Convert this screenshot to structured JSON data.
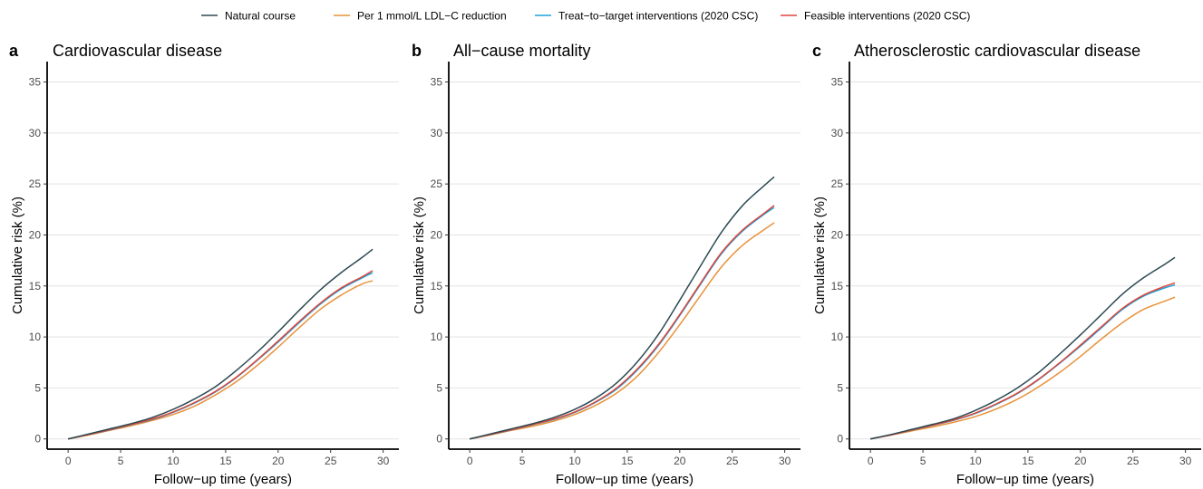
{
  "legend": [
    {
      "label": "Natural course",
      "color": "#2c4a52"
    },
    {
      "label": "Per 1 mmol/L LDL−C reduction",
      "color": "#e8923a"
    },
    {
      "label": "Treat−to−target interventions (2020 CSC)",
      "color": "#1aa3d9"
    },
    {
      "label": "Feasible interventions (2020 CSC)",
      "color": "#e0453a"
    }
  ],
  "chart_data": [
    {
      "type": "line",
      "letter": "a",
      "title": "Cardiovascular disease",
      "xlabel": "Follow−up time (years)",
      "ylabel": "Cumulative risk (%)",
      "xlim": [
        -2,
        31.5
      ],
      "ylim": [
        -1,
        37
      ],
      "xticks": [
        0,
        5,
        10,
        15,
        20,
        25,
        30
      ],
      "yticks": [
        0,
        5,
        10,
        15,
        20,
        25,
        30,
        35
      ],
      "grid": "horizontal",
      "x": [
        0,
        2,
        4,
        6,
        8,
        10,
        12,
        14,
        16,
        18,
        20,
        22,
        24,
        26,
        28,
        29
      ],
      "series": [
        {
          "name": "Natural course",
          "values": [
            0,
            0.5,
            1.0,
            1.5,
            2.1,
            2.9,
            3.9,
            5.1,
            6.7,
            8.5,
            10.5,
            12.6,
            14.6,
            16.3,
            17.8,
            18.6
          ]
        },
        {
          "name": "Per 1 mmol/L LDL−C reduction",
          "values": [
            0,
            0.4,
            0.85,
            1.3,
            1.8,
            2.4,
            3.2,
            4.3,
            5.6,
            7.2,
            9.0,
            10.9,
            12.7,
            14.1,
            15.2,
            15.5
          ]
        },
        {
          "name": "Treat−to−target interventions (2020 CSC)",
          "values": [
            0,
            0.45,
            0.9,
            1.4,
            1.9,
            2.6,
            3.5,
            4.6,
            6.0,
            7.7,
            9.5,
            11.4,
            13.2,
            14.7,
            15.8,
            16.3
          ]
        },
        {
          "name": "Feasible interventions (2020 CSC)",
          "values": [
            0,
            0.45,
            0.92,
            1.42,
            1.95,
            2.65,
            3.55,
            4.65,
            6.05,
            7.75,
            9.6,
            11.5,
            13.3,
            14.8,
            15.9,
            16.5
          ]
        }
      ]
    },
    {
      "type": "line",
      "letter": "b",
      "title": "All−cause mortality",
      "xlabel": "Follow−up time (years)",
      "ylabel": "Cumulative risk (%)",
      "xlim": [
        -2,
        31.5
      ],
      "ylim": [
        -1,
        37
      ],
      "xticks": [
        0,
        5,
        10,
        15,
        20,
        25,
        30
      ],
      "yticks": [
        0,
        5,
        10,
        15,
        20,
        25,
        30,
        35
      ],
      "grid": "horizontal",
      "x": [
        0,
        2,
        4,
        6,
        8,
        10,
        12,
        14,
        16,
        18,
        20,
        22,
        24,
        26,
        28,
        29
      ],
      "series": [
        {
          "name": "Natural course",
          "values": [
            0,
            0.5,
            1.0,
            1.5,
            2.1,
            2.9,
            4.0,
            5.5,
            7.6,
            10.3,
            13.6,
            17.0,
            20.3,
            22.9,
            24.8,
            25.7
          ]
        },
        {
          "name": "Per 1 mmol/L LDL−C reduction",
          "values": [
            0,
            0.4,
            0.85,
            1.25,
            1.75,
            2.4,
            3.3,
            4.5,
            6.2,
            8.5,
            11.2,
            14.1,
            16.9,
            19.0,
            20.5,
            21.2
          ]
        },
        {
          "name": "Treat−to−target interventions (2020 CSC)",
          "values": [
            0,
            0.45,
            0.9,
            1.4,
            1.9,
            2.6,
            3.6,
            4.9,
            6.8,
            9.2,
            12.1,
            15.2,
            18.2,
            20.4,
            22.0,
            22.7
          ]
        },
        {
          "name": "Feasible interventions (2020 CSC)",
          "values": [
            0,
            0.45,
            0.92,
            1.42,
            1.95,
            2.65,
            3.65,
            5.0,
            6.9,
            9.3,
            12.2,
            15.3,
            18.3,
            20.5,
            22.1,
            22.9
          ]
        }
      ]
    },
    {
      "type": "line",
      "letter": "c",
      "title": "Atherosclerostic cardiovascular disease",
      "xlabel": "Follow−up time (years)",
      "ylabel": "Cumulative risk (%)",
      "xlim": [
        -2,
        31.5
      ],
      "ylim": [
        -1,
        37
      ],
      "xticks": [
        0,
        5,
        10,
        15,
        20,
        25,
        30
      ],
      "yticks": [
        0,
        5,
        10,
        15,
        20,
        25,
        30,
        35
      ],
      "grid": "horizontal",
      "x": [
        0,
        2,
        4,
        6,
        8,
        10,
        12,
        14,
        16,
        18,
        20,
        22,
        24,
        26,
        28,
        29
      ],
      "series": [
        {
          "name": "Natural course",
          "values": [
            0,
            0.45,
            0.95,
            1.45,
            2.0,
            2.8,
            3.8,
            5.0,
            6.5,
            8.3,
            10.2,
            12.2,
            14.2,
            15.8,
            17.1,
            17.8
          ]
        },
        {
          "name": "Per 1 mmol/L LDL−C reduction",
          "values": [
            0,
            0.38,
            0.8,
            1.2,
            1.65,
            2.2,
            2.95,
            3.9,
            5.1,
            6.5,
            8.1,
            9.8,
            11.4,
            12.7,
            13.5,
            13.9
          ]
        },
        {
          "name": "Treat−to−target interventions (2020 CSC)",
          "values": [
            0,
            0.42,
            0.88,
            1.35,
            1.85,
            2.5,
            3.4,
            4.45,
            5.8,
            7.4,
            9.1,
            10.9,
            12.7,
            14.0,
            14.8,
            15.1
          ]
        },
        {
          "name": "Feasible interventions (2020 CSC)",
          "values": [
            0,
            0.42,
            0.9,
            1.37,
            1.88,
            2.55,
            3.45,
            4.5,
            5.85,
            7.45,
            9.2,
            11.0,
            12.8,
            14.1,
            14.95,
            15.3
          ]
        }
      ]
    }
  ]
}
